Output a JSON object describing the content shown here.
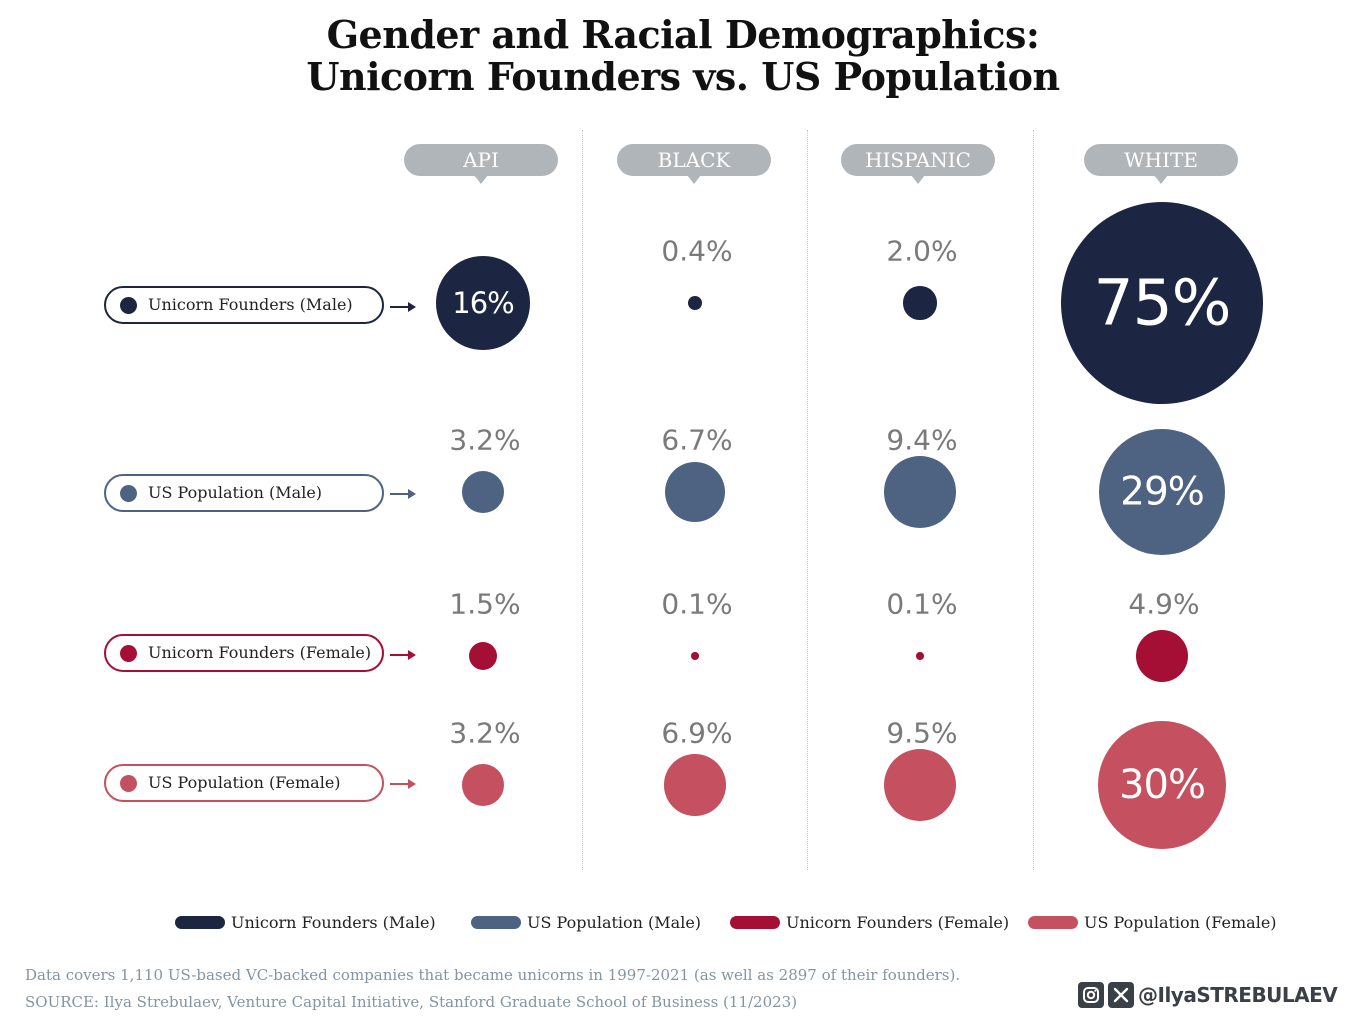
{
  "title": {
    "line1": "Gender and Racial Demographics:",
    "line2": "Unicorn Founders vs. US Population"
  },
  "chart_data": {
    "type": "bubble",
    "columns": [
      "API",
      "BLACK",
      "HISPANIC",
      "WHITE"
    ],
    "rows": [
      {
        "name": "Unicorn Founders (Male)",
        "color": "#1c2541",
        "values": [
          16,
          0.4,
          2.0,
          75
        ],
        "labels": [
          "16%",
          "0.4%",
          "2.0%",
          "75%"
        ]
      },
      {
        "name": "US Population (Male)",
        "color": "#4e6382",
        "values": [
          3.2,
          6.7,
          9.4,
          29
        ],
        "labels": [
          "3.2%",
          "6.7%",
          "9.4%",
          "29%"
        ]
      },
      {
        "name": "Unicorn Founders (Female)",
        "color": "#a50f36",
        "values": [
          1.5,
          0.1,
          0.1,
          4.9
        ],
        "labels": [
          "1.5%",
          "0.1%",
          "0.1%",
          "4.9%"
        ]
      },
      {
        "name": "US Population (Female)",
        "color": "#c5505f",
        "values": [
          3.2,
          6.9,
          9.5,
          30
        ],
        "labels": [
          "3.2%",
          "6.9%",
          "9.5%",
          "30%"
        ]
      }
    ],
    "legend": [
      "Unicorn Founders (Male)",
      "US Population (Male)",
      "Unicorn Founders (Female)",
      "US Population (Female)"
    ],
    "legend_placement": "bottom"
  },
  "footer": {
    "note": "Data covers 1,110 US-based VC-backed companies that became unicorns in 1997-2021 (as well as 2897 of their founders).",
    "source": "SOURCE: Ilya Strebulaev, Venture Capital Initiative, Stanford Graduate School of Business (11/2023)",
    "handle": "@IlyaSTREBULAEV",
    "icons": [
      "instagram-icon",
      "x-icon"
    ]
  }
}
